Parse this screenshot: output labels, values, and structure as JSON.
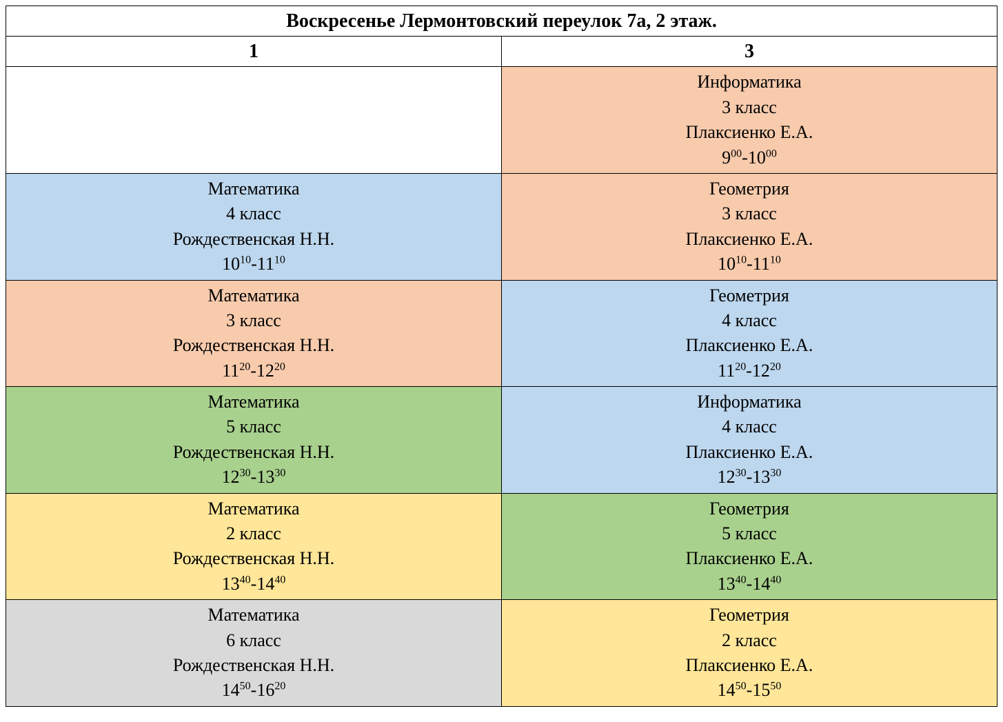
{
  "title": "Воскресенье Лермонтовский переулок 7а, 2 этаж.",
  "columns": [
    "1",
    "3"
  ],
  "colors": {
    "blue": "#bdd7ee",
    "orange": "#f8cbad",
    "green": "#a9d18e",
    "yellow": "#ffe699",
    "gray": "#d9d9d9",
    "white": "#ffffff"
  },
  "rows": [
    {
      "col1": null,
      "col2": {
        "subject": "Информатика",
        "grade": "3 класс",
        "teacher": "Плаксиенко Е.А.",
        "time_start_h": "9",
        "time_start_m": "00",
        "time_end_h": "10",
        "time_end_m": "00",
        "bg": "orange"
      }
    },
    {
      "col1": {
        "subject": "Математика",
        "grade": "4 класс",
        "teacher": "Рождественская Н.Н.",
        "time_start_h": "10",
        "time_start_m": "10",
        "time_end_h": "11",
        "time_end_m": "10",
        "bg": "blue"
      },
      "col2": {
        "subject": "Геометрия",
        "grade": "3 класс",
        "teacher": "Плаксиенко Е.А.",
        "time_start_h": "10",
        "time_start_m": "10",
        "time_end_h": "11",
        "time_end_m": "10",
        "bg": "orange"
      }
    },
    {
      "col1": {
        "subject": "Математика",
        "grade": "3 класс",
        "teacher": "Рождественская Н.Н.",
        "time_start_h": "11",
        "time_start_m": "20",
        "time_end_h": "12",
        "time_end_m": "20",
        "bg": "orange"
      },
      "col2": {
        "subject": "Геометрия",
        "grade": "4 класс",
        "teacher": "Плаксиенко Е.А.",
        "time_start_h": "11",
        "time_start_m": "20",
        "time_end_h": "12",
        "time_end_m": "20",
        "bg": "blue"
      }
    },
    {
      "col1": {
        "subject": "Математика",
        "grade": "5 класс",
        "teacher": "Рождественская Н.Н.",
        "time_start_h": "12",
        "time_start_m": "30",
        "time_end_h": "13",
        "time_end_m": "30",
        "bg": "green"
      },
      "col2": {
        "subject": "Информатика",
        "grade": "4 класс",
        "teacher": "Плаксиенко Е.А.",
        "time_start_h": "12",
        "time_start_m": "30",
        "time_end_h": "13",
        "time_end_m": "30",
        "bg": "blue"
      }
    },
    {
      "col1": {
        "subject": "Математика",
        "grade": "2 класс",
        "teacher": "Рождественская Н.Н.",
        "time_start_h": "13",
        "time_start_m": "40",
        "time_end_h": "14",
        "time_end_m": "40",
        "bg": "yellow"
      },
      "col2": {
        "subject": "Геометрия",
        "grade": "5 класс",
        "teacher": "Плаксиенко Е.А.",
        "time_start_h": "13",
        "time_start_m": "40",
        "time_end_h": "14",
        "time_end_m": "40",
        "bg": "green"
      }
    },
    {
      "col1": {
        "subject": "Математика",
        "grade": "6 класс",
        "teacher": "Рождественская Н.Н.",
        "time_start_h": "14",
        "time_start_m": "50",
        "time_end_h": "16",
        "time_end_m": "20",
        "bg": "gray"
      },
      "col2": {
        "subject": "Геометрия",
        "grade": "2 класс",
        "teacher": "Плаксиенко Е.А.",
        "time_start_h": "14",
        "time_start_m": "50",
        "time_end_h": "15",
        "time_end_m": "50",
        "bg": "yellow"
      }
    }
  ]
}
